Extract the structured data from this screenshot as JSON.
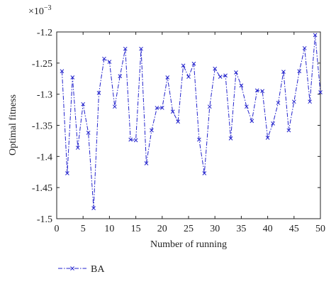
{
  "chart_data": {
    "type": "line",
    "x_label": "Number of running",
    "y_label": "Optimal fitness",
    "y_scale_base": "×10",
    "y_scale_exponent": "−3",
    "x": [
      1,
      2,
      3,
      4,
      5,
      6,
      7,
      8,
      9,
      10,
      11,
      12,
      13,
      14,
      15,
      16,
      17,
      18,
      19,
      20,
      21,
      22,
      23,
      24,
      25,
      26,
      27,
      28,
      29,
      30,
      31,
      32,
      33,
      34,
      35,
      36,
      37,
      38,
      39,
      40,
      41,
      42,
      43,
      44,
      45,
      46,
      47,
      48,
      49,
      50
    ],
    "series": [
      {
        "name": "BA",
        "color": "#2222cc",
        "values": [
          -1.263,
          -1.427,
          -1.273,
          -1.386,
          -1.316,
          -1.362,
          -1.483,
          -1.298,
          -1.243,
          -1.248,
          -1.32,
          -1.271,
          -1.227,
          -1.373,
          -1.374,
          -1.227,
          -1.411,
          -1.358,
          -1.322,
          -1.322,
          -1.273,
          -1.328,
          -1.344,
          -1.254,
          -1.272,
          -1.251,
          -1.373,
          -1.427,
          -1.32,
          -1.259,
          -1.272,
          -1.27,
          -1.371,
          -1.265,
          -1.286,
          -1.32,
          -1.343,
          -1.294,
          -1.295,
          -1.37,
          -1.347,
          -1.314,
          -1.264,
          -1.358,
          -1.312,
          -1.263,
          -1.226,
          -1.312,
          -1.205,
          -1.297
        ]
      }
    ],
    "xlim": [
      0,
      50
    ],
    "xticks": [
      0,
      5,
      10,
      15,
      20,
      25,
      30,
      35,
      40,
      45,
      50
    ],
    "ylim": [
      -1.5,
      -1.2
    ],
    "yticks": [
      -1.5,
      -1.45,
      -1.4,
      -1.35,
      -1.3,
      -1.25,
      -1.2
    ]
  }
}
